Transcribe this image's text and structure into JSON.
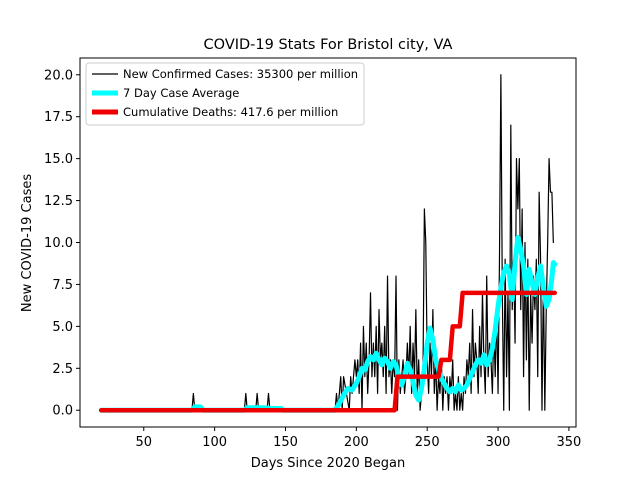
{
  "chart_data": {
    "type": "line",
    "title": "COVID-19 Stats For Bristol city, VA",
    "xlabel": "Days Since 2020 Began",
    "ylabel": "New COVID-19 Cases",
    "xlim": [
      5,
      355
    ],
    "ylim": [
      -1.0,
      21.0
    ],
    "x_ticks": [
      50,
      100,
      150,
      200,
      250,
      300,
      350
    ],
    "y_ticks": [
      0.0,
      2.5,
      5.0,
      7.5,
      10.0,
      12.5,
      15.0,
      17.5,
      20.0
    ],
    "y_tick_labels": [
      "0.0",
      "2.5",
      "5.0",
      "7.5",
      "10.0",
      "12.5",
      "15.0",
      "17.5",
      "20.0"
    ],
    "legend_position": "top-left",
    "series": [
      {
        "name": "New Confirmed Cases: 35300 per million",
        "color": "#000000",
        "style": "thin",
        "points": [
          [
            20,
            0
          ],
          [
            84,
            0
          ],
          [
            85,
            1
          ],
          [
            86,
            0
          ],
          [
            121,
            0
          ],
          [
            122,
            1
          ],
          [
            123,
            0
          ],
          [
            129,
            0
          ],
          [
            130,
            1
          ],
          [
            131,
            0
          ],
          [
            137,
            0
          ],
          [
            138,
            1
          ],
          [
            139,
            0
          ],
          [
            185,
            0
          ],
          [
            186,
            1
          ],
          [
            187,
            0
          ],
          [
            189,
            2
          ],
          [
            190,
            0
          ],
          [
            191,
            2
          ],
          [
            193,
            1
          ],
          [
            195,
            0
          ],
          [
            196,
            2
          ],
          [
            197,
            1
          ],
          [
            199,
            3
          ],
          [
            200,
            2
          ],
          [
            201,
            3
          ],
          [
            202,
            1
          ],
          [
            203,
            4
          ],
          [
            204,
            0
          ],
          [
            205,
            5
          ],
          [
            206,
            2
          ],
          [
            207,
            4
          ],
          [
            208,
            1
          ],
          [
            209,
            3
          ],
          [
            210,
            7
          ],
          [
            211,
            2
          ],
          [
            212,
            4
          ],
          [
            213,
            2
          ],
          [
            214,
            5
          ],
          [
            215,
            1
          ],
          [
            216,
            6
          ],
          [
            217,
            3
          ],
          [
            218,
            4
          ],
          [
            219,
            2
          ],
          [
            220,
            5
          ],
          [
            221,
            1
          ],
          [
            222,
            8
          ],
          [
            223,
            2
          ],
          [
            224,
            3
          ],
          [
            225,
            1
          ],
          [
            226,
            3
          ],
          [
            227,
            2
          ],
          [
            228,
            8
          ],
          [
            229,
            0
          ],
          [
            230,
            3
          ],
          [
            231,
            1
          ],
          [
            232,
            2
          ],
          [
            233,
            3
          ],
          [
            234,
            1
          ],
          [
            235,
            2
          ],
          [
            236,
            4
          ],
          [
            237,
            2
          ],
          [
            238,
            5
          ],
          [
            239,
            1
          ],
          [
            240,
            4
          ],
          [
            241,
            2
          ],
          [
            242,
            6
          ],
          [
            243,
            1
          ],
          [
            244,
            3
          ],
          [
            245,
            0
          ],
          [
            246,
            1
          ],
          [
            247,
            2
          ],
          [
            248,
            12
          ],
          [
            249,
            10
          ],
          [
            250,
            3
          ],
          [
            251,
            1
          ],
          [
            252,
            4
          ],
          [
            253,
            2
          ],
          [
            254,
            6
          ],
          [
            255,
            1
          ],
          [
            256,
            3
          ],
          [
            257,
            0
          ],
          [
            258,
            2
          ],
          [
            259,
            1
          ],
          [
            260,
            3
          ],
          [
            261,
            0
          ],
          [
            262,
            2
          ],
          [
            263,
            1
          ],
          [
            264,
            2
          ],
          [
            265,
            0
          ],
          [
            266,
            2
          ],
          [
            267,
            1
          ],
          [
            268,
            3
          ],
          [
            269,
            0
          ],
          [
            270,
            1
          ],
          [
            271,
            0
          ],
          [
            272,
            2
          ],
          [
            273,
            0
          ],
          [
            274,
            1
          ],
          [
            275,
            0
          ],
          [
            276,
            2
          ],
          [
            277,
            1
          ],
          [
            278,
            3
          ],
          [
            279,
            2
          ],
          [
            280,
            4
          ],
          [
            281,
            1
          ],
          [
            282,
            6
          ],
          [
            283,
            2
          ],
          [
            284,
            4
          ],
          [
            285,
            3
          ],
          [
            286,
            1
          ],
          [
            287,
            5
          ],
          [
            288,
            2
          ],
          [
            289,
            7
          ],
          [
            290,
            3
          ],
          [
            291,
            1
          ],
          [
            292,
            8
          ],
          [
            293,
            2
          ],
          [
            294,
            4
          ],
          [
            295,
            3
          ],
          [
            296,
            1
          ],
          [
            297,
            5
          ],
          [
            298,
            2
          ],
          [
            299,
            6
          ],
          [
            300,
            1
          ],
          [
            301,
            9
          ],
          [
            302,
            20
          ],
          [
            303,
            7
          ],
          [
            304,
            0
          ],
          [
            305,
            9
          ],
          [
            306,
            2
          ],
          [
            307,
            7
          ],
          [
            308,
            0
          ],
          [
            309,
            17
          ],
          [
            310,
            6
          ],
          [
            311,
            9
          ],
          [
            312,
            4
          ],
          [
            313,
            15
          ],
          [
            314,
            12
          ],
          [
            315,
            15
          ],
          [
            316,
            6
          ],
          [
            317,
            12
          ],
          [
            318,
            2
          ],
          [
            319,
            10
          ],
          [
            320,
            3
          ],
          [
            321,
            9
          ],
          [
            322,
            0
          ],
          [
            323,
            7
          ],
          [
            324,
            4
          ],
          [
            325,
            8
          ],
          [
            326,
            6
          ],
          [
            327,
            9
          ],
          [
            328,
            2
          ],
          [
            329,
            13
          ],
          [
            330,
            9
          ],
          [
            331,
            0
          ],
          [
            332,
            8
          ],
          [
            333,
            0
          ],
          [
            334,
            6
          ],
          [
            335,
            10
          ],
          [
            336,
            15
          ],
          [
            337,
            13
          ],
          [
            338,
            13
          ],
          [
            339,
            10
          ]
        ]
      },
      {
        "name": "7 Day Case Average",
        "color": "#00ffff",
        "style": "thick",
        "points": [
          [
            20,
            0
          ],
          [
            84,
            0
          ],
          [
            86,
            0.2
          ],
          [
            90,
            0.2
          ],
          [
            92,
            0
          ],
          [
            121,
            0
          ],
          [
            123,
            0.15
          ],
          [
            135,
            0.15
          ],
          [
            140,
            0.1
          ],
          [
            147,
            0.1
          ],
          [
            148,
            0
          ],
          [
            185,
            0
          ],
          [
            188,
            0.4
          ],
          [
            191,
            0.9
          ],
          [
            194,
            1.3
          ],
          [
            197,
            1.2
          ],
          [
            200,
            1.6
          ],
          [
            202,
            2.0
          ],
          [
            204,
            2.5
          ],
          [
            206,
            2.4
          ],
          [
            208,
            2.9
          ],
          [
            210,
            3.2
          ],
          [
            212,
            3.0
          ],
          [
            214,
            3.4
          ],
          [
            216,
            3.0
          ],
          [
            218,
            2.7
          ],
          [
            220,
            3.1
          ],
          [
            222,
            2.9
          ],
          [
            224,
            2.5
          ],
          [
            226,
            2.9
          ],
          [
            228,
            2.7
          ],
          [
            230,
            2.0
          ],
          [
            232,
            1.5
          ],
          [
            234,
            2.0
          ],
          [
            236,
            2.8
          ],
          [
            238,
            2.4
          ],
          [
            240,
            1.7
          ],
          [
            242,
            0.9
          ],
          [
            244,
            0.6
          ],
          [
            246,
            1.3
          ],
          [
            248,
            2.5
          ],
          [
            250,
            4.0
          ],
          [
            252,
            4.9
          ],
          [
            254,
            4.2
          ],
          [
            256,
            3.0
          ],
          [
            258,
            2.4
          ],
          [
            260,
            1.9
          ],
          [
            262,
            1.6
          ],
          [
            264,
            1.3
          ],
          [
            266,
            1.1
          ],
          [
            268,
            1.3
          ],
          [
            270,
            1.1
          ],
          [
            272,
            1.5
          ],
          [
            274,
            1.2
          ],
          [
            276,
            1.3
          ],
          [
            278,
            1.5
          ],
          [
            280,
            1.9
          ],
          [
            282,
            2.3
          ],
          [
            284,
            2.7
          ],
          [
            286,
            3.0
          ],
          [
            288,
            2.8
          ],
          [
            290,
            3.3
          ],
          [
            292,
            2.7
          ],
          [
            294,
            3.0
          ],
          [
            296,
            3.7
          ],
          [
            298,
            4.8
          ],
          [
            300,
            6.2
          ],
          [
            302,
            7.3
          ],
          [
            304,
            8.2
          ],
          [
            306,
            8.6
          ],
          [
            308,
            8.1
          ],
          [
            310,
            6.6
          ],
          [
            312,
            8.8
          ],
          [
            314,
            10.3
          ],
          [
            316,
            9.6
          ],
          [
            318,
            8.6
          ],
          [
            320,
            6.9
          ],
          [
            322,
            8.4
          ],
          [
            324,
            7.6
          ],
          [
            326,
            6.9
          ],
          [
            328,
            7.9
          ],
          [
            330,
            8.6
          ],
          [
            332,
            7.3
          ],
          [
            334,
            6.2
          ],
          [
            336,
            6.6
          ],
          [
            338,
            7.9
          ],
          [
            339,
            8.8
          ],
          [
            340,
            8.7
          ]
        ]
      },
      {
        "name": "Cumulative Deaths: 417.6 per million",
        "color": "#ee0000",
        "style": "step",
        "points": [
          [
            20,
            0
          ],
          [
            227,
            0
          ],
          [
            229,
            2
          ],
          [
            258,
            2
          ],
          [
            260,
            3
          ],
          [
            266,
            3
          ],
          [
            268,
            5
          ],
          [
            273,
            5
          ],
          [
            275,
            7
          ],
          [
            340,
            7
          ]
        ]
      }
    ]
  }
}
